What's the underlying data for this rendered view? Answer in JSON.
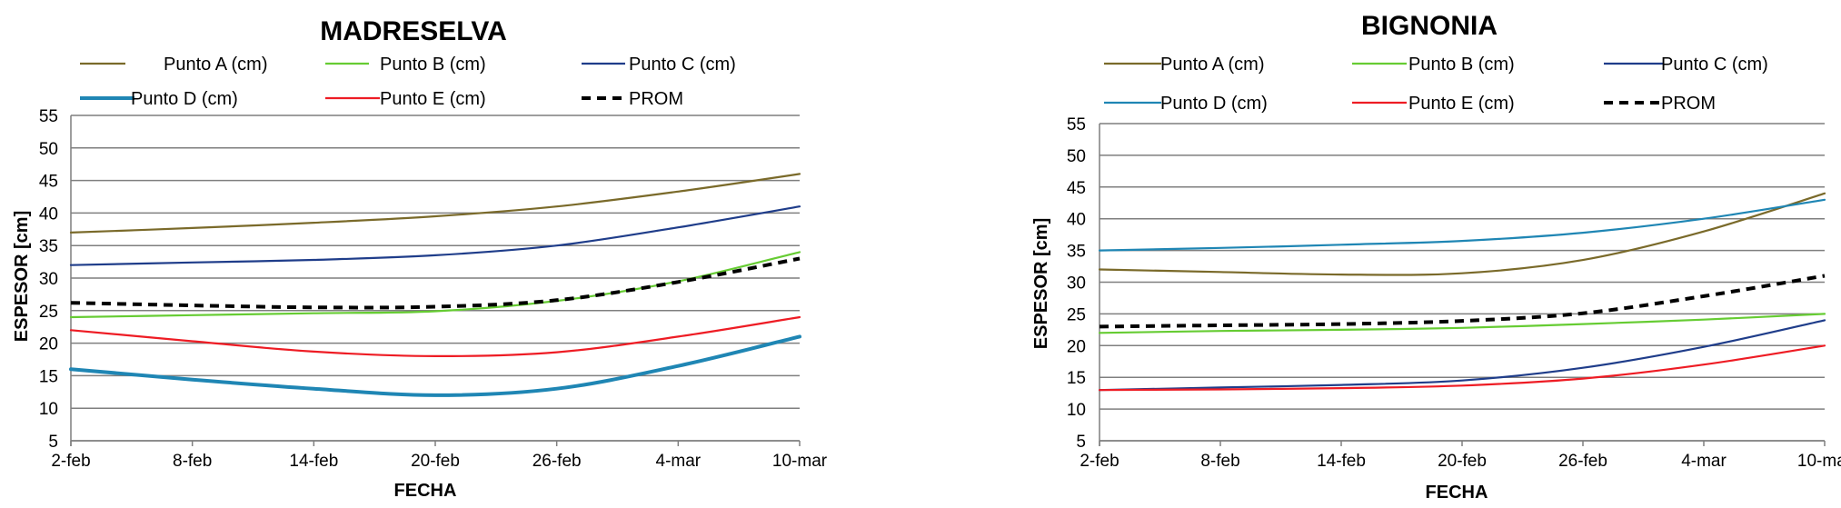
{
  "chart_data": [
    {
      "type": "line",
      "title": "MADRESELVA",
      "xlabel": "FECHA",
      "ylabel": "ESPESOR [cm]",
      "categories": [
        "2-feb",
        "8-feb",
        "14-feb",
        "20-feb",
        "26-feb",
        "4-mar",
        "10-mar"
      ],
      "ylim": [
        5,
        55
      ],
      "yticks": [
        5,
        10,
        15,
        20,
        25,
        30,
        35,
        40,
        45,
        50,
        55
      ],
      "grid": true,
      "legend_position": "top",
      "series": [
        {
          "name": "Punto A (cm)",
          "color": "#7a6a2a",
          "style": "solid",
          "weight": "thin",
          "values": [
            37,
            37.7,
            38.5,
            39.5,
            41,
            43.3,
            46
          ]
        },
        {
          "name": "Punto B (cm)",
          "color": "#66cc33",
          "style": "solid",
          "weight": "thin",
          "values": [
            24,
            24.3,
            24.6,
            24.9,
            26.5,
            29.5,
            34
          ]
        },
        {
          "name": "Punto C (cm)",
          "color": "#1f3d8a",
          "style": "solid",
          "weight": "thin",
          "values": [
            32,
            32.4,
            32.8,
            33.5,
            35,
            37.8,
            41
          ]
        },
        {
          "name": "Punto D (cm)",
          "color": "#1f86b4",
          "style": "solid",
          "weight": "thick",
          "values": [
            16,
            14.4,
            13,
            12,
            13,
            16.5,
            21
          ]
        },
        {
          "name": "Punto E (cm)",
          "color": "#ee1c24",
          "style": "solid",
          "weight": "thin",
          "values": [
            22,
            20.3,
            18.7,
            18,
            18.6,
            21,
            24
          ]
        },
        {
          "name": "PROM",
          "color": "#000000",
          "style": "dashed",
          "weight": "thick",
          "values": [
            26.2,
            25.8,
            25.5,
            25.6,
            26.6,
            29.4,
            33
          ]
        }
      ]
    },
    {
      "type": "line",
      "title": "BIGNONIA",
      "xlabel": "FECHA",
      "ylabel": "ESPESOR [cm]",
      "categories": [
        "2-feb",
        "8-feb",
        "14-feb",
        "20-feb",
        "26-feb",
        "4-mar",
        "10-mar"
      ],
      "ylim": [
        5,
        55
      ],
      "yticks": [
        5,
        10,
        15,
        20,
        25,
        30,
        35,
        40,
        45,
        50,
        55
      ],
      "grid": true,
      "legend_position": "top",
      "series": [
        {
          "name": "Punto A (cm)",
          "color": "#7a6a2a",
          "style": "solid",
          "weight": "thin",
          "values": [
            32,
            31.6,
            31.2,
            31.4,
            33.5,
            38,
            44
          ]
        },
        {
          "name": "Punto B (cm)",
          "color": "#66cc33",
          "style": "solid",
          "weight": "thin",
          "values": [
            22,
            22.3,
            22.5,
            22.8,
            23.4,
            24.1,
            25
          ]
        },
        {
          "name": "Punto C (cm)",
          "color": "#1f3d8a",
          "style": "solid",
          "weight": "thin",
          "values": [
            13,
            13.4,
            13.8,
            14.5,
            16.5,
            19.8,
            24
          ]
        },
        {
          "name": "Punto D (cm)",
          "color": "#1f86b4",
          "style": "solid",
          "weight": "thin",
          "values": [
            35,
            35.4,
            35.9,
            36.5,
            37.8,
            40,
            43
          ]
        },
        {
          "name": "Punto E (cm)",
          "color": "#ee1c24",
          "style": "solid",
          "weight": "thin",
          "values": [
            13,
            13.1,
            13.3,
            13.7,
            14.8,
            17,
            20
          ]
        },
        {
          "name": "PROM",
          "color": "#000000",
          "style": "dashed",
          "weight": "thick",
          "values": [
            23,
            23.2,
            23.4,
            23.9,
            25.1,
            27.8,
            31
          ]
        }
      ]
    }
  ]
}
